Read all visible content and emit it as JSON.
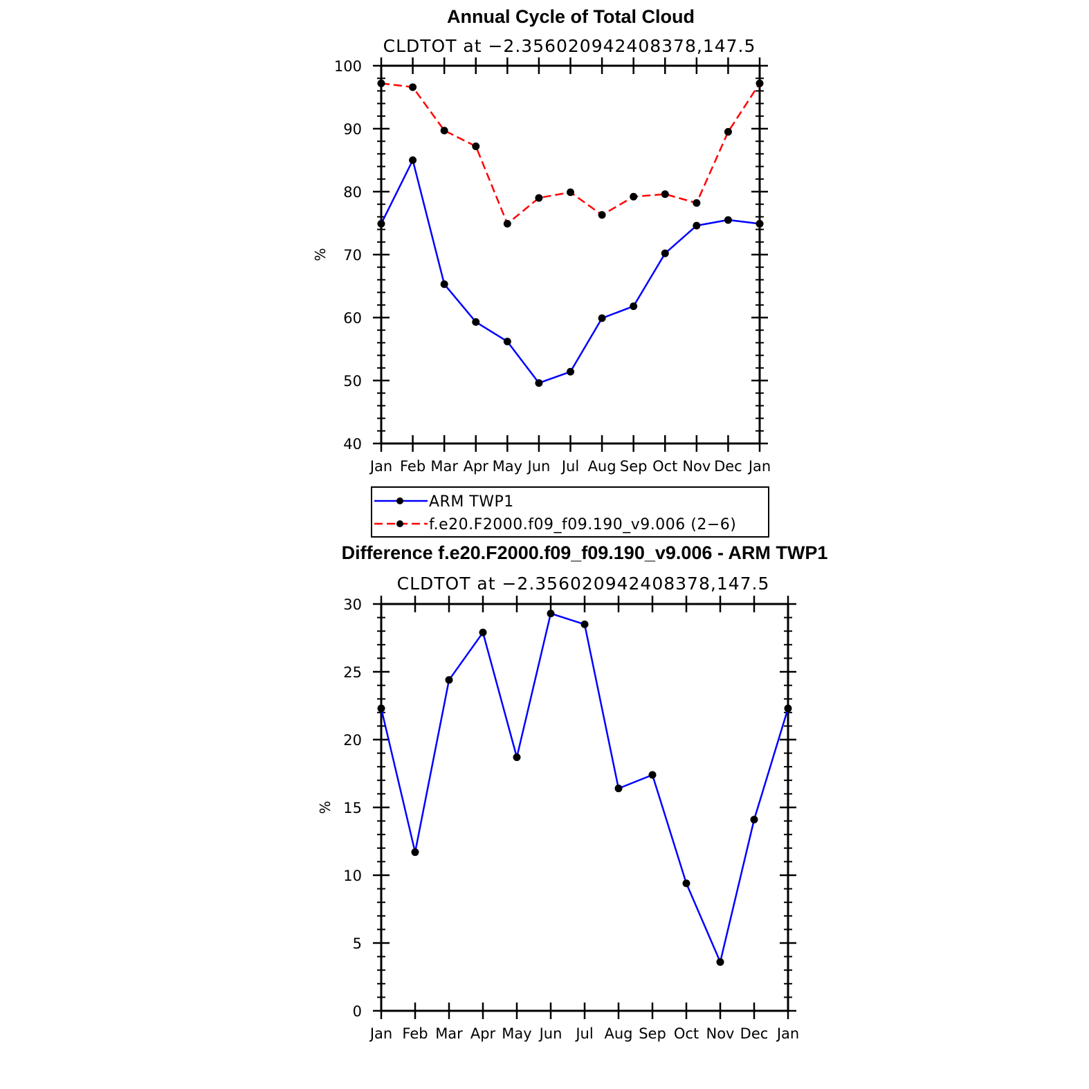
{
  "colors": {
    "series_obs": "#0000ff",
    "series_model": "#ff0000",
    "marker": "#000000",
    "axis": "#000000"
  },
  "chart_data": [
    {
      "type": "line",
      "title": "Annual Cycle of Total Cloud",
      "subtitle": "CLDTOT at −2.356020942408378,147.5",
      "xlabel": "",
      "ylabel": "%",
      "categories": [
        "Jan",
        "Feb",
        "Mar",
        "Apr",
        "May",
        "Jun",
        "Jul",
        "Aug",
        "Sep",
        "Oct",
        "Nov",
        "Dec",
        "Jan"
      ],
      "ylim": [
        40,
        100
      ],
      "yticks": [
        40,
        50,
        60,
        70,
        80,
        90,
        100
      ],
      "grid": false,
      "legend_position": "bottom",
      "series": [
        {
          "name": "ARM TWP1",
          "line_style": "solid",
          "color": "#0000ff",
          "values": [
            74.9,
            85.0,
            65.3,
            59.3,
            56.2,
            49.6,
            51.4,
            59.9,
            61.8,
            70.2,
            74.6,
            75.5,
            74.9
          ]
        },
        {
          "name": "f.e20.F2000.f09_f09.190_v9.006 (2−6)",
          "line_style": "dashed",
          "color": "#ff0000",
          "values": [
            97.2,
            96.6,
            89.7,
            87.2,
            74.9,
            79.0,
            79.9,
            76.3,
            79.2,
            79.6,
            78.2,
            89.5,
            97.2
          ]
        }
      ]
    },
    {
      "type": "line",
      "title": "Difference f.e20.F2000.f09_f09.190_v9.006 - ARM TWP1",
      "subtitle": "CLDTOT at −2.356020942408378,147.5",
      "xlabel": "",
      "ylabel": "%",
      "categories": [
        "Jan",
        "Feb",
        "Mar",
        "Apr",
        "May",
        "Jun",
        "Jul",
        "Aug",
        "Sep",
        "Oct",
        "Nov",
        "Dec",
        "Jan"
      ],
      "ylim": [
        0,
        30
      ],
      "yticks": [
        0,
        5,
        10,
        15,
        20,
        25,
        30
      ],
      "grid": false,
      "series": [
        {
          "line_style": "solid",
          "color": "#0000ff",
          "values": [
            22.3,
            11.7,
            24.4,
            27.9,
            18.7,
            29.3,
            28.5,
            16.4,
            17.4,
            9.4,
            3.6,
            14.1,
            22.3
          ]
        }
      ]
    }
  ]
}
